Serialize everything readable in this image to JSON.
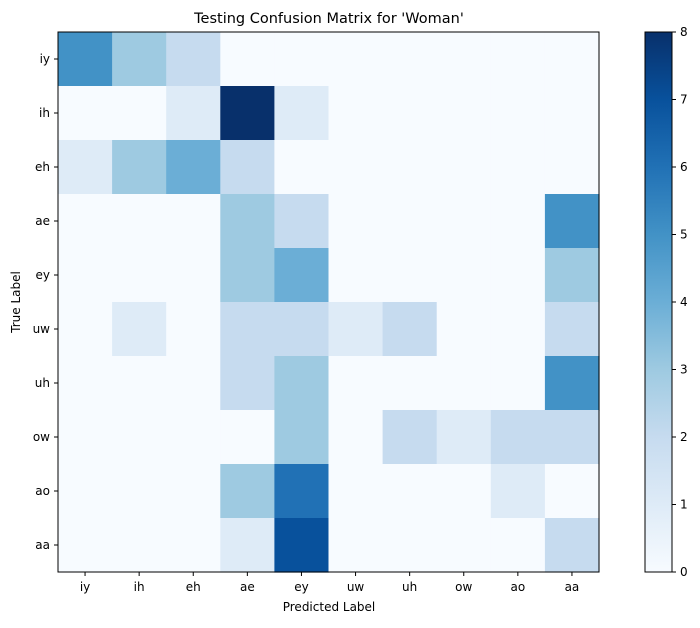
{
  "chart_data": {
    "type": "heatmap",
    "title": "Testing Confusion Matrix for 'Woman'",
    "xlabel": "Predicted Label",
    "ylabel": "True Label",
    "x_categories": [
      "iy",
      "ih",
      "eh",
      "ae",
      "ey",
      "uw",
      "uh",
      "ow",
      "ao",
      "aa"
    ],
    "y_categories": [
      "iy",
      "ih",
      "eh",
      "ae",
      "ey",
      "uw",
      "uh",
      "ow",
      "ao",
      "aa"
    ],
    "values": [
      [
        5,
        3,
        2,
        0,
        0,
        0,
        0,
        0,
        0,
        0
      ],
      [
        0,
        0,
        1,
        8,
        1,
        0,
        0,
        0,
        0,
        0
      ],
      [
        1,
        3,
        4,
        2,
        0,
        0,
        0,
        0,
        0,
        0
      ],
      [
        0,
        0,
        0,
        3,
        2,
        0,
        0,
        0,
        0,
        5
      ],
      [
        0,
        0,
        0,
        3,
        4,
        0,
        0,
        0,
        0,
        3
      ],
      [
        0,
        1,
        0,
        2,
        2,
        1,
        2,
        0,
        0,
        2
      ],
      [
        0,
        0,
        0,
        2,
        3,
        0,
        0,
        0,
        0,
        5
      ],
      [
        0,
        0,
        0,
        0,
        3,
        0,
        2,
        1,
        2,
        2
      ],
      [
        0,
        0,
        0,
        3,
        6,
        0,
        0,
        0,
        1,
        0
      ],
      [
        0,
        0,
        0,
        1,
        7,
        0,
        0,
        0,
        0,
        2
      ]
    ],
    "colormap": "Blues",
    "vmin": 0,
    "vmax": 8,
    "colorbar_ticks": [
      "0",
      "1",
      "2",
      "3",
      "4",
      "5",
      "6",
      "7",
      "8"
    ],
    "colors": {
      "low": "#f7fbff",
      "high": "#08306b"
    }
  }
}
